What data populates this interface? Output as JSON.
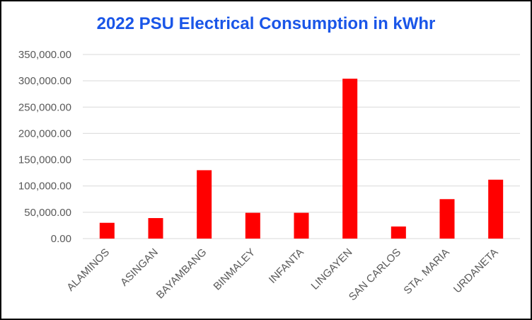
{
  "chart_data": {
    "type": "bar",
    "title": "2022 PSU Electrical Consumption in kWhr",
    "xlabel": "",
    "ylabel": "",
    "categories": [
      "ALAMINOS",
      "ASINGAN",
      "BAYAMBANG",
      "BINMALEY",
      "INFANTA",
      "LINGAYEN",
      "SAN CARLOS",
      "STA. MARIA",
      "URDANETA"
    ],
    "values": [
      30000,
      39000,
      130000,
      49000,
      49000,
      304000,
      23000,
      75000,
      112000
    ],
    "ylim": [
      0,
      350000
    ],
    "yticks": [
      0,
      50000,
      100000,
      150000,
      200000,
      250000,
      300000,
      350000
    ],
    "ytick_labels": [
      "0.00",
      "50,000.00",
      "100,000.00",
      "150,000.00",
      "200,000.00",
      "250,000.00",
      "300,000.00",
      "350,000.00"
    ],
    "grid": true,
    "legend": "none",
    "bar_color": "#ff0000",
    "title_color": "#1a56e8"
  }
}
